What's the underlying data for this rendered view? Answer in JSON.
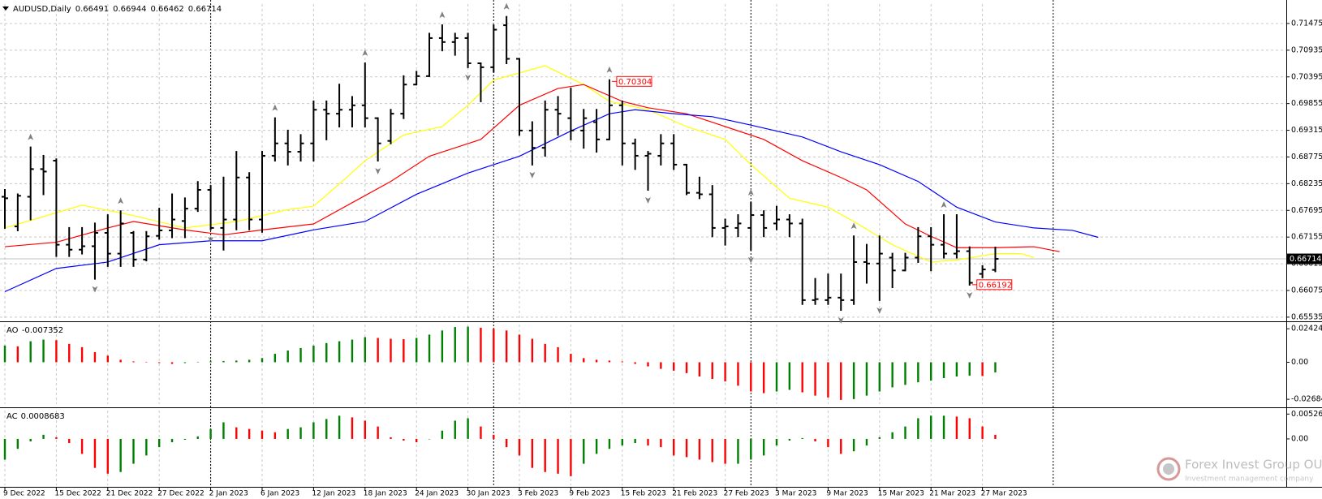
{
  "chart_data": [
    {
      "type": "ohlc",
      "title": "AUDUSD,Daily",
      "categories": [
        "9 Dec 2022",
        null,
        null,
        null,
        "15 Dec 2022",
        null,
        null,
        null,
        "21 Dec 2022",
        null,
        null,
        null,
        "27 Dec 2022",
        null,
        null,
        null,
        "2 Jan 2023",
        null,
        null,
        null,
        "6 Jan 2023",
        null,
        null,
        null,
        "12 Jan 2023",
        null,
        null,
        null,
        "18 Jan 2023",
        null,
        null,
        null,
        "24 Jan 2023",
        null,
        null,
        null,
        "30 Jan 2023",
        null,
        null,
        null,
        "3 Feb 2023",
        null,
        null,
        null,
        "9 Feb 2023",
        null,
        null,
        null,
        "15 Feb 2023",
        null,
        null,
        null,
        "21 Feb 2023",
        null,
        null,
        null,
        "27 Feb 2023",
        null,
        null,
        null,
        "3 Mar 2023",
        null,
        null,
        null,
        "9 Mar 2023",
        null,
        null,
        null,
        "15 Mar 2023",
        null,
        null,
        null,
        "21 Mar 2023",
        null,
        null,
        null,
        "27 Mar 2023",
        null
      ],
      "ohlc": [
        [
          0.6797,
          0.6811,
          0.6734,
          0.6794
        ],
        [
          0.6737,
          0.6802,
          0.6729,
          0.6799
        ],
        [
          0.6797,
          0.6897,
          0.6751,
          0.6853
        ],
        [
          0.6853,
          0.688,
          0.6802,
          0.6848
        ],
        [
          0.687,
          0.6873,
          0.6677,
          0.67
        ],
        [
          0.67,
          0.6734,
          0.6677,
          0.669
        ],
        [
          0.669,
          0.6734,
          0.6682,
          0.6697
        ],
        [
          0.6697,
          0.6743,
          0.6631,
          0.6724
        ],
        [
          0.6724,
          0.676,
          0.6657,
          0.6682
        ],
        [
          0.6682,
          0.6768,
          0.6657,
          0.6743
        ],
        [
          0.6724,
          0.6726,
          0.6657,
          0.667
        ],
        [
          0.667,
          0.6726,
          0.6668,
          0.6717
        ],
        [
          0.6718,
          0.6773,
          0.6712,
          0.6729
        ],
        [
          0.6729,
          0.6802,
          0.6715,
          0.6751
        ],
        [
          0.6748,
          0.6794,
          0.6715,
          0.6773
        ],
        [
          0.6773,
          0.6827,
          0.6768,
          0.6811
        ],
        [
          0.6811,
          0.6819,
          0.6731,
          0.6734
        ],
        [
          0.6734,
          0.6836,
          0.669,
          0.6751
        ],
        [
          0.6751,
          0.6888,
          0.6731,
          0.6836
        ],
        [
          0.6836,
          0.6845,
          0.6731,
          0.6751
        ],
        [
          0.6751,
          0.6888,
          0.6726,
          0.688
        ],
        [
          0.688,
          0.6956,
          0.687,
          0.6905
        ],
        [
          0.6905,
          0.6931,
          0.6862,
          0.6888
        ],
        [
          0.6888,
          0.6922,
          0.687,
          0.6905
        ],
        [
          0.6905,
          0.699,
          0.687,
          0.6973
        ],
        [
          0.6973,
          0.699,
          0.6913,
          0.6965
        ],
        [
          0.6965,
          0.7024,
          0.6939,
          0.6973
        ],
        [
          0.6973,
          0.6999,
          0.6939,
          0.6982
        ],
        [
          0.6982,
          0.7067,
          0.6939,
          0.6956
        ],
        [
          0.6956,
          0.6956,
          0.687,
          0.6905
        ],
        [
          0.691,
          0.6973,
          0.6905,
          0.6965
        ],
        [
          0.6965,
          0.7041,
          0.6956,
          0.7024
        ],
        [
          0.7024,
          0.705,
          0.7024,
          0.7041
        ],
        [
          0.7041,
          0.7127,
          0.7041,
          0.7118
        ],
        [
          0.7118,
          0.7144,
          0.7093,
          0.711
        ],
        [
          0.711,
          0.7127,
          0.7084,
          0.7118
        ],
        [
          0.7118,
          0.7127,
          0.7059,
          0.7067
        ],
        [
          0.7067,
          0.7067,
          0.699,
          0.7059
        ],
        [
          0.7059,
          0.7144,
          0.705,
          0.7135
        ],
        [
          0.7144,
          0.7161,
          0.7067,
          0.7076
        ],
        [
          0.7076,
          0.7076,
          0.6922,
          0.6931
        ],
        [
          0.6931,
          0.6948,
          0.6862,
          0.6896
        ],
        [
          0.6896,
          0.699,
          0.688,
          0.6973
        ],
        [
          0.6973,
          0.6999,
          0.6922,
          0.6965
        ],
        [
          0.6956,
          0.7016,
          0.6913,
          0.6931
        ],
        [
          0.6931,
          0.6973,
          0.6896,
          0.6956
        ],
        [
          0.6948,
          0.6973,
          0.6888,
          0.6913
        ],
        [
          0.6913,
          0.7033,
          0.6913,
          0.6982
        ],
        [
          0.6982,
          0.699,
          0.6862,
          0.6905
        ],
        [
          0.6905,
          0.6913,
          0.6853,
          0.688
        ],
        [
          0.688,
          0.6888,
          0.6811,
          0.6884
        ],
        [
          0.688,
          0.6922,
          0.6862,
          0.6905
        ],
        [
          0.6905,
          0.6922,
          0.6853,
          0.6862
        ],
        [
          0.6862,
          0.6862,
          0.6802,
          0.6805
        ],
        [
          0.6805,
          0.6836,
          0.6794,
          0.6802
        ],
        [
          0.6802,
          0.6819,
          0.6717,
          0.6734
        ],
        [
          0.6734,
          0.6751,
          0.67,
          0.6737
        ],
        [
          0.6734,
          0.676,
          0.6717,
          0.6743
        ],
        [
          0.6734,
          0.6785,
          0.669,
          0.676
        ],
        [
          0.676,
          0.6768,
          0.6717,
          0.6734
        ],
        [
          0.6743,
          0.6777,
          0.6731,
          0.6751
        ],
        [
          0.6751,
          0.676,
          0.6717,
          0.6743
        ],
        [
          0.6743,
          0.6751,
          0.658,
          0.6588
        ],
        [
          0.6588,
          0.6631,
          0.658,
          0.659
        ],
        [
          0.6588,
          0.664,
          0.658,
          0.6593
        ],
        [
          0.6593,
          0.664,
          0.6568,
          0.6588
        ],
        [
          0.6588,
          0.6717,
          0.658,
          0.6665
        ],
        [
          0.6665,
          0.67,
          0.6623,
          0.6662
        ],
        [
          0.6662,
          0.6717,
          0.6588,
          0.6682
        ],
        [
          0.6674,
          0.6682,
          0.6614,
          0.6648
        ],
        [
          0.6648,
          0.6682,
          0.6648,
          0.6674
        ],
        [
          0.6674,
          0.6734,
          0.6665,
          0.6717
        ],
        [
          0.6717,
          0.6734,
          0.6648,
          0.67
        ],
        [
          0.67,
          0.676,
          0.6674,
          0.6682
        ],
        [
          0.6682,
          0.676,
          0.6674,
          0.6687
        ],
        [
          0.6687,
          0.6695,
          0.6619,
          0.6623
        ],
        [
          0.6641,
          0.6657,
          0.6634,
          0.665
        ],
        [
          0.66491,
          0.66944,
          0.66462,
          0.66714
        ]
      ],
      "color": "#000000",
      "series": [
        {
          "color": "#ffff00",
          "x": [
            0,
            6,
            10,
            14,
            18,
            22,
            24,
            26,
            28,
            31,
            34,
            36,
            38,
            42,
            45,
            47,
            50,
            53,
            56,
            58,
            61,
            64,
            66,
            69,
            72,
            74,
            77,
            79,
            80
          ],
          "values": [
            0.6734,
            0.678,
            0.6759,
            0.6734,
            0.6747,
            0.6771,
            0.6778,
            0.6823,
            0.687,
            0.6922,
            0.6939,
            0.6982,
            0.7033,
            0.7062,
            0.7024,
            0.699,
            0.6973,
            0.6939,
            0.6913,
            0.6862,
            0.6794,
            0.6776,
            0.6747,
            0.67,
            0.6665,
            0.6669,
            0.6682,
            0.6682,
            0.6674
          ]
        },
        {
          "color": "#ff0000",
          "x": [
            0,
            4,
            8,
            10,
            14,
            17,
            20,
            24,
            27,
            30,
            33,
            35,
            37,
            40,
            43,
            45,
            48,
            50,
            53,
            56,
            59,
            62,
            65,
            67,
            70,
            72,
            74,
            77,
            80,
            82
          ],
          "values": [
            0.6696,
            0.6705,
            0.6734,
            0.6747,
            0.673,
            0.672,
            0.673,
            0.6742,
            0.6785,
            0.6828,
            0.6879,
            0.6896,
            0.6913,
            0.6982,
            0.7016,
            0.7024,
            0.699,
            0.6977,
            0.6965,
            0.6939,
            0.6913,
            0.687,
            0.6836,
            0.6811,
            0.6742,
            0.6717,
            0.6694,
            0.6694,
            0.6696,
            0.6686
          ]
        },
        {
          "color": "#0000ff",
          "x": [
            0,
            4,
            8,
            12,
            16,
            20,
            24,
            28,
            32,
            36,
            40,
            44,
            47,
            49,
            52,
            55,
            58,
            62,
            65,
            68,
            71,
            74,
            77,
            80,
            83,
            85
          ],
          "values": [
            0.6605,
            0.6652,
            0.6665,
            0.67,
            0.6708,
            0.6708,
            0.673,
            0.6747,
            0.6802,
            0.6845,
            0.6879,
            0.693,
            0.6965,
            0.6973,
            0.6965,
            0.6959,
            0.6942,
            0.6918,
            0.6888,
            0.6862,
            0.6828,
            0.6776,
            0.6746,
            0.6734,
            0.6729,
            0.6715
          ]
        }
      ],
      "fractals_up": [
        2,
        9,
        21,
        28,
        34,
        39,
        47,
        58,
        66,
        73
      ],
      "fractals_down": [
        7,
        16,
        29,
        36,
        41,
        50,
        58,
        65,
        68,
        75
      ],
      "fractal_color": "#808080",
      "price_labels": [
        {
          "x": 47,
          "value": 0.70304
        },
        {
          "x": 75,
          "value": 0.66192
        }
      ],
      "price_label_color": "#ff0000",
      "price_line_color": "#c0c0c0",
      "ylim": [
        0.65484,
        0.71868
      ],
      "yticks": [
        0.71475,
        0.70935,
        0.70395,
        0.69855,
        0.69315,
        0.68775,
        0.68235,
        0.67695,
        0.67155,
        0.66615,
        0.66075,
        0.65535
      ],
      "grid": true
    },
    {
      "type": "histogram",
      "title": "AO",
      "up_color": "#008000",
      "down_color": "#ff0000",
      "values": [
        0.0121,
        0.0115,
        0.0152,
        0.0164,
        0.016,
        0.0133,
        0.0109,
        0.0073,
        0.0048,
        0.0018,
        0.0006,
        0.0003,
        -0.0006,
        -0.0012,
        -0.0006,
        0.0003,
        0.0006,
        0.0009,
        0.0012,
        0.0018,
        0.003,
        0.0061,
        0.0085,
        0.0103,
        0.0121,
        0.0139,
        0.0152,
        0.0164,
        0.0182,
        0.0176,
        0.017,
        0.0167,
        0.0176,
        0.02,
        0.023,
        0.0255,
        0.0258,
        0.025,
        0.0242,
        0.023,
        0.02,
        0.017,
        0.0133,
        0.0109,
        0.0061,
        0.003,
        0.0018,
        0.0012,
        0.0006,
        -0.0012,
        -0.003,
        -0.0048,
        -0.0061,
        -0.0079,
        -0.0103,
        -0.0121,
        -0.0139,
        -0.017,
        -0.0212,
        -0.0224,
        -0.0212,
        -0.02,
        -0.0218,
        -0.0242,
        -0.0255,
        -0.0273,
        -0.0267,
        -0.0242,
        -0.0212,
        -0.0182,
        -0.0164,
        -0.0145,
        -0.0133,
        -0.0115,
        -0.0103,
        -0.0097,
        -0.01,
        -0.007352
      ],
      "ylim": [
        -0.0303,
        0.0273
      ],
      "yticks": [
        0.024243,
        {
          "value": 0,
          "label": "0.00"
        },
        -0.026843
      ],
      "grid": false
    },
    {
      "type": "histogram",
      "title": "AC",
      "up_color": "#008000",
      "down_color": "#ff0000",
      "values": [
        -0.00438,
        -0.0021,
        -0.00053,
        0.00088,
        0.00035,
        -0.00088,
        -0.00316,
        -0.00614,
        -0.00736,
        -0.00701,
        -0.00526,
        -0.00351,
        -0.00175,
        -0.0007,
        -0.00018,
        0.00053,
        0.0021,
        0.00351,
        0.00245,
        0.0021,
        0.00175,
        0.0014,
        0.0021,
        0.00245,
        0.00351,
        0.00421,
        0.00491,
        0.00456,
        0.00386,
        0.00263,
        0.00035,
        -0.00035,
        -0.0007,
        0,
        0.00175,
        0.00386,
        0.00438,
        0.00263,
        0.00088,
        -0.00175,
        -0.00351,
        -0.00614,
        -0.00701,
        -0.00736,
        -0.00789,
        -0.00526,
        -0.00316,
        -0.0021,
        -0.0014,
        -0.00088,
        -0.0014,
        -0.00175,
        -0.00351,
        -0.00386,
        -0.00438,
        -0.00491,
        -0.00526,
        -0.00526,
        -0.00438,
        -0.00351,
        -0.0014,
        -0.00035,
        0.00018,
        -0.00053,
        -0.00175,
        -0.00316,
        -0.00263,
        -0.0014,
        0.00035,
        0.0014,
        0.00263,
        0.00438,
        0.00491,
        0.00491,
        0.00473,
        0.00438,
        0.00263,
        0.0008683
      ],
      "ylim": [
        -0.0098,
        0.006
      ],
      "yticks": [
        0.0052603,
        {
          "value": 0,
          "label": "0.00"
        }
      ],
      "grid": false
    }
  ],
  "watermark": {
    "title": "Forex Invest Group OU",
    "subtitle": "Investment management company"
  }
}
